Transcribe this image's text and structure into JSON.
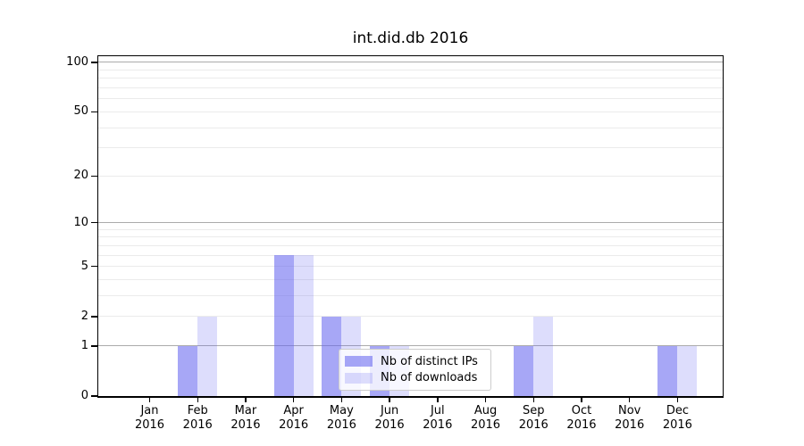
{
  "title": "int.did.db 2016",
  "chart_data": {
    "type": "bar",
    "title": "int.did.db 2016",
    "categories": [
      {
        "month": "Jan",
        "year": "2016"
      },
      {
        "month": "Feb",
        "year": "2016"
      },
      {
        "month": "Mar",
        "year": "2016"
      },
      {
        "month": "Apr",
        "year": "2016"
      },
      {
        "month": "May",
        "year": "2016"
      },
      {
        "month": "Jun",
        "year": "2016"
      },
      {
        "month": "Jul",
        "year": "2016"
      },
      {
        "month": "Aug",
        "year": "2016"
      },
      {
        "month": "Sep",
        "year": "2016"
      },
      {
        "month": "Oct",
        "year": "2016"
      },
      {
        "month": "Nov",
        "year": "2016"
      },
      {
        "month": "Dec",
        "year": "2016"
      }
    ],
    "series": [
      {
        "name": "Nb of distinct IPs",
        "color": "rgba(100,100,240,0.57)",
        "values": [
          0,
          1,
          0,
          6,
          2,
          1,
          0,
          0,
          1,
          0,
          0,
          1
        ]
      },
      {
        "name": "Nb of downloads",
        "color": "rgba(100,100,240,0.22)",
        "values": [
          0,
          2,
          0,
          6,
          2,
          1,
          0,
          0,
          2,
          0,
          0,
          1
        ]
      }
    ],
    "y_axis": {
      "scale": "log10(1+v)",
      "tick_values": [
        0,
        1,
        2,
        5,
        10,
        20,
        50,
        100
      ],
      "major_grid_values": [
        1,
        10,
        100
      ],
      "minor_grid_values": [
        2,
        3,
        4,
        5,
        6,
        7,
        8,
        9,
        20,
        30,
        40,
        50,
        60,
        70,
        80,
        90
      ],
      "ylim": [
        0,
        110
      ]
    },
    "legend": {
      "position": "lower center"
    },
    "colors": {
      "bar_base": "#6464f0",
      "major_grid": "#ababab",
      "minor_grid": "#ebebeb",
      "axis": "#000000"
    }
  }
}
